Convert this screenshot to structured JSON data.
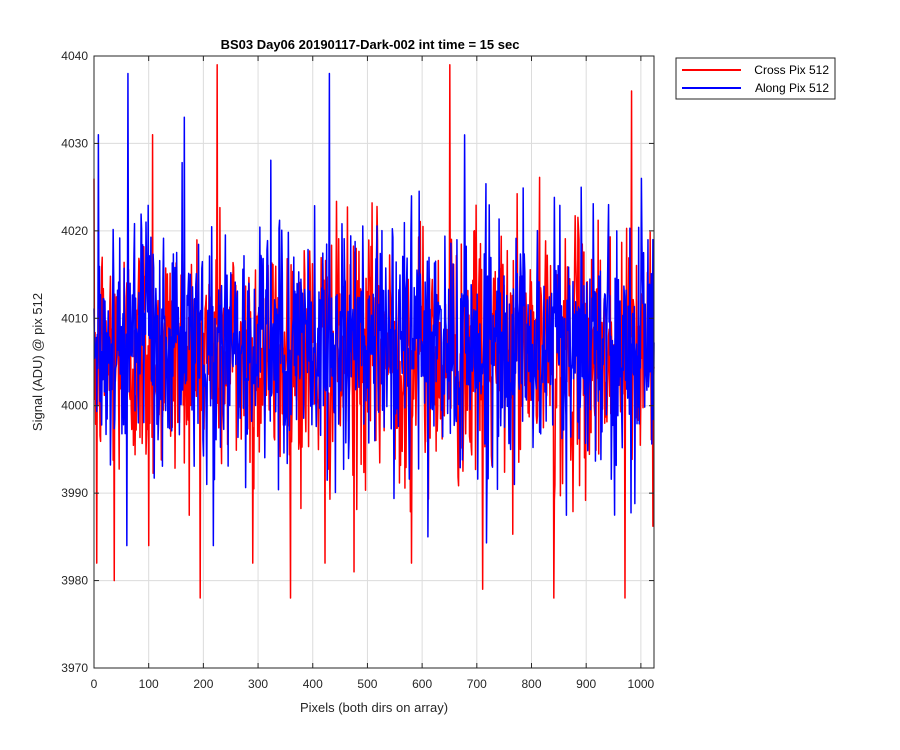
{
  "chart_data": {
    "type": "line",
    "title": "BS03 Day06 20190117-Dark-002 int time = 15 sec",
    "xlabel": "Pixels (both dirs on array)",
    "ylabel": "Signal (ADU) @ pix 512",
    "xlim": [
      0,
      1024
    ],
    "ylim": [
      3970,
      4040
    ],
    "xticks": [
      0,
      100,
      200,
      300,
      400,
      500,
      600,
      700,
      800,
      900,
      1000
    ],
    "yticks": [
      3970,
      3980,
      3990,
      4000,
      4010,
      4020,
      4030,
      4040
    ],
    "grid": true,
    "legend_position": "outside-top-right",
    "series": [
      {
        "name": "Cross Pix 512",
        "color": "#ff0000",
        "mean": 4006,
        "noise_range": [
          3978,
          4039
        ],
        "num_points": 1024,
        "extremes": [
          {
            "x": 5,
            "y": 3982
          },
          {
            "x": 37,
            "y": 3980
          },
          {
            "x": 100,
            "y": 3984
          },
          {
            "x": 107,
            "y": 4031
          },
          {
            "x": 225,
            "y": 4039
          },
          {
            "x": 290,
            "y": 3982
          },
          {
            "x": 422,
            "y": 3982
          },
          {
            "x": 475,
            "y": 3981
          },
          {
            "x": 580,
            "y": 3982
          },
          {
            "x": 650,
            "y": 4039
          },
          {
            "x": 710,
            "y": 3979
          },
          {
            "x": 840,
            "y": 3978
          },
          {
            "x": 970,
            "y": 3978
          },
          {
            "x": 982,
            "y": 4036
          }
        ]
      },
      {
        "name": "Along Pix 512",
        "color": "#0000ff",
        "mean": 4007,
        "noise_range": [
          3984,
          4038
        ],
        "num_points": 1024,
        "extremes": [
          {
            "x": 8,
            "y": 4031
          },
          {
            "x": 62,
            "y": 4038
          },
          {
            "x": 60,
            "y": 3984
          },
          {
            "x": 165,
            "y": 4033
          },
          {
            "x": 218,
            "y": 3984
          },
          {
            "x": 430,
            "y": 4038
          },
          {
            "x": 580,
            "y": 4024
          },
          {
            "x": 610,
            "y": 3985
          },
          {
            "x": 940,
            "y": 4023
          },
          {
            "x": 955,
            "y": 4020
          },
          {
            "x": 1000,
            "y": 4026
          }
        ]
      }
    ]
  }
}
